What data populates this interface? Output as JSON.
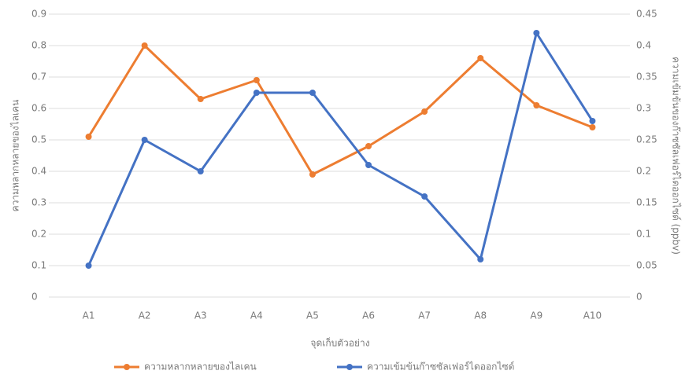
{
  "chart_data": {
    "type": "line",
    "x_label": "จุดเก็บตัวอย่าง",
    "y_label": "ความหลากหลายของไลเคน",
    "y2_label": "ความเข้มข้นของก๊าซซัลเฟอร์ไดออกไซด์ (ppbv)",
    "categories": [
      "A1",
      "A2",
      "A3",
      "A4",
      "A5",
      "A6",
      "A7",
      "A8",
      "A9",
      "A10"
    ],
    "series": [
      {
        "name": "ความหลากหลายของไลเคน",
        "color": "#ed7d31",
        "values": [
          0.51,
          0.8,
          0.63,
          0.69,
          0.39,
          0.48,
          0.59,
          0.76,
          0.61,
          0.54
        ]
      },
      {
        "name": "ความเข้มข้นก๊าซซัลเฟอร์ไดออกไซด์",
        "color": "#4472c4",
        "axis": "y2",
        "values": [
          0.05,
          0.25,
          0.2,
          0.325,
          0.325,
          0.21,
          0.16,
          0.06,
          0.42,
          0.28
        ]
      }
    ],
    "ylim": [
      0,
      0.9
    ],
    "yticks": [
      0,
      0.1,
      0.2,
      0.3,
      0.4,
      0.5,
      0.6,
      0.7,
      0.8,
      0.9
    ],
    "y2lim": [
      0,
      0.45
    ],
    "y2ticks": [
      0,
      0.05,
      0.1,
      0.15,
      0.2,
      0.25,
      0.3,
      0.35,
      0.4,
      0.45
    ],
    "grid": true,
    "legend": "bottom"
  }
}
